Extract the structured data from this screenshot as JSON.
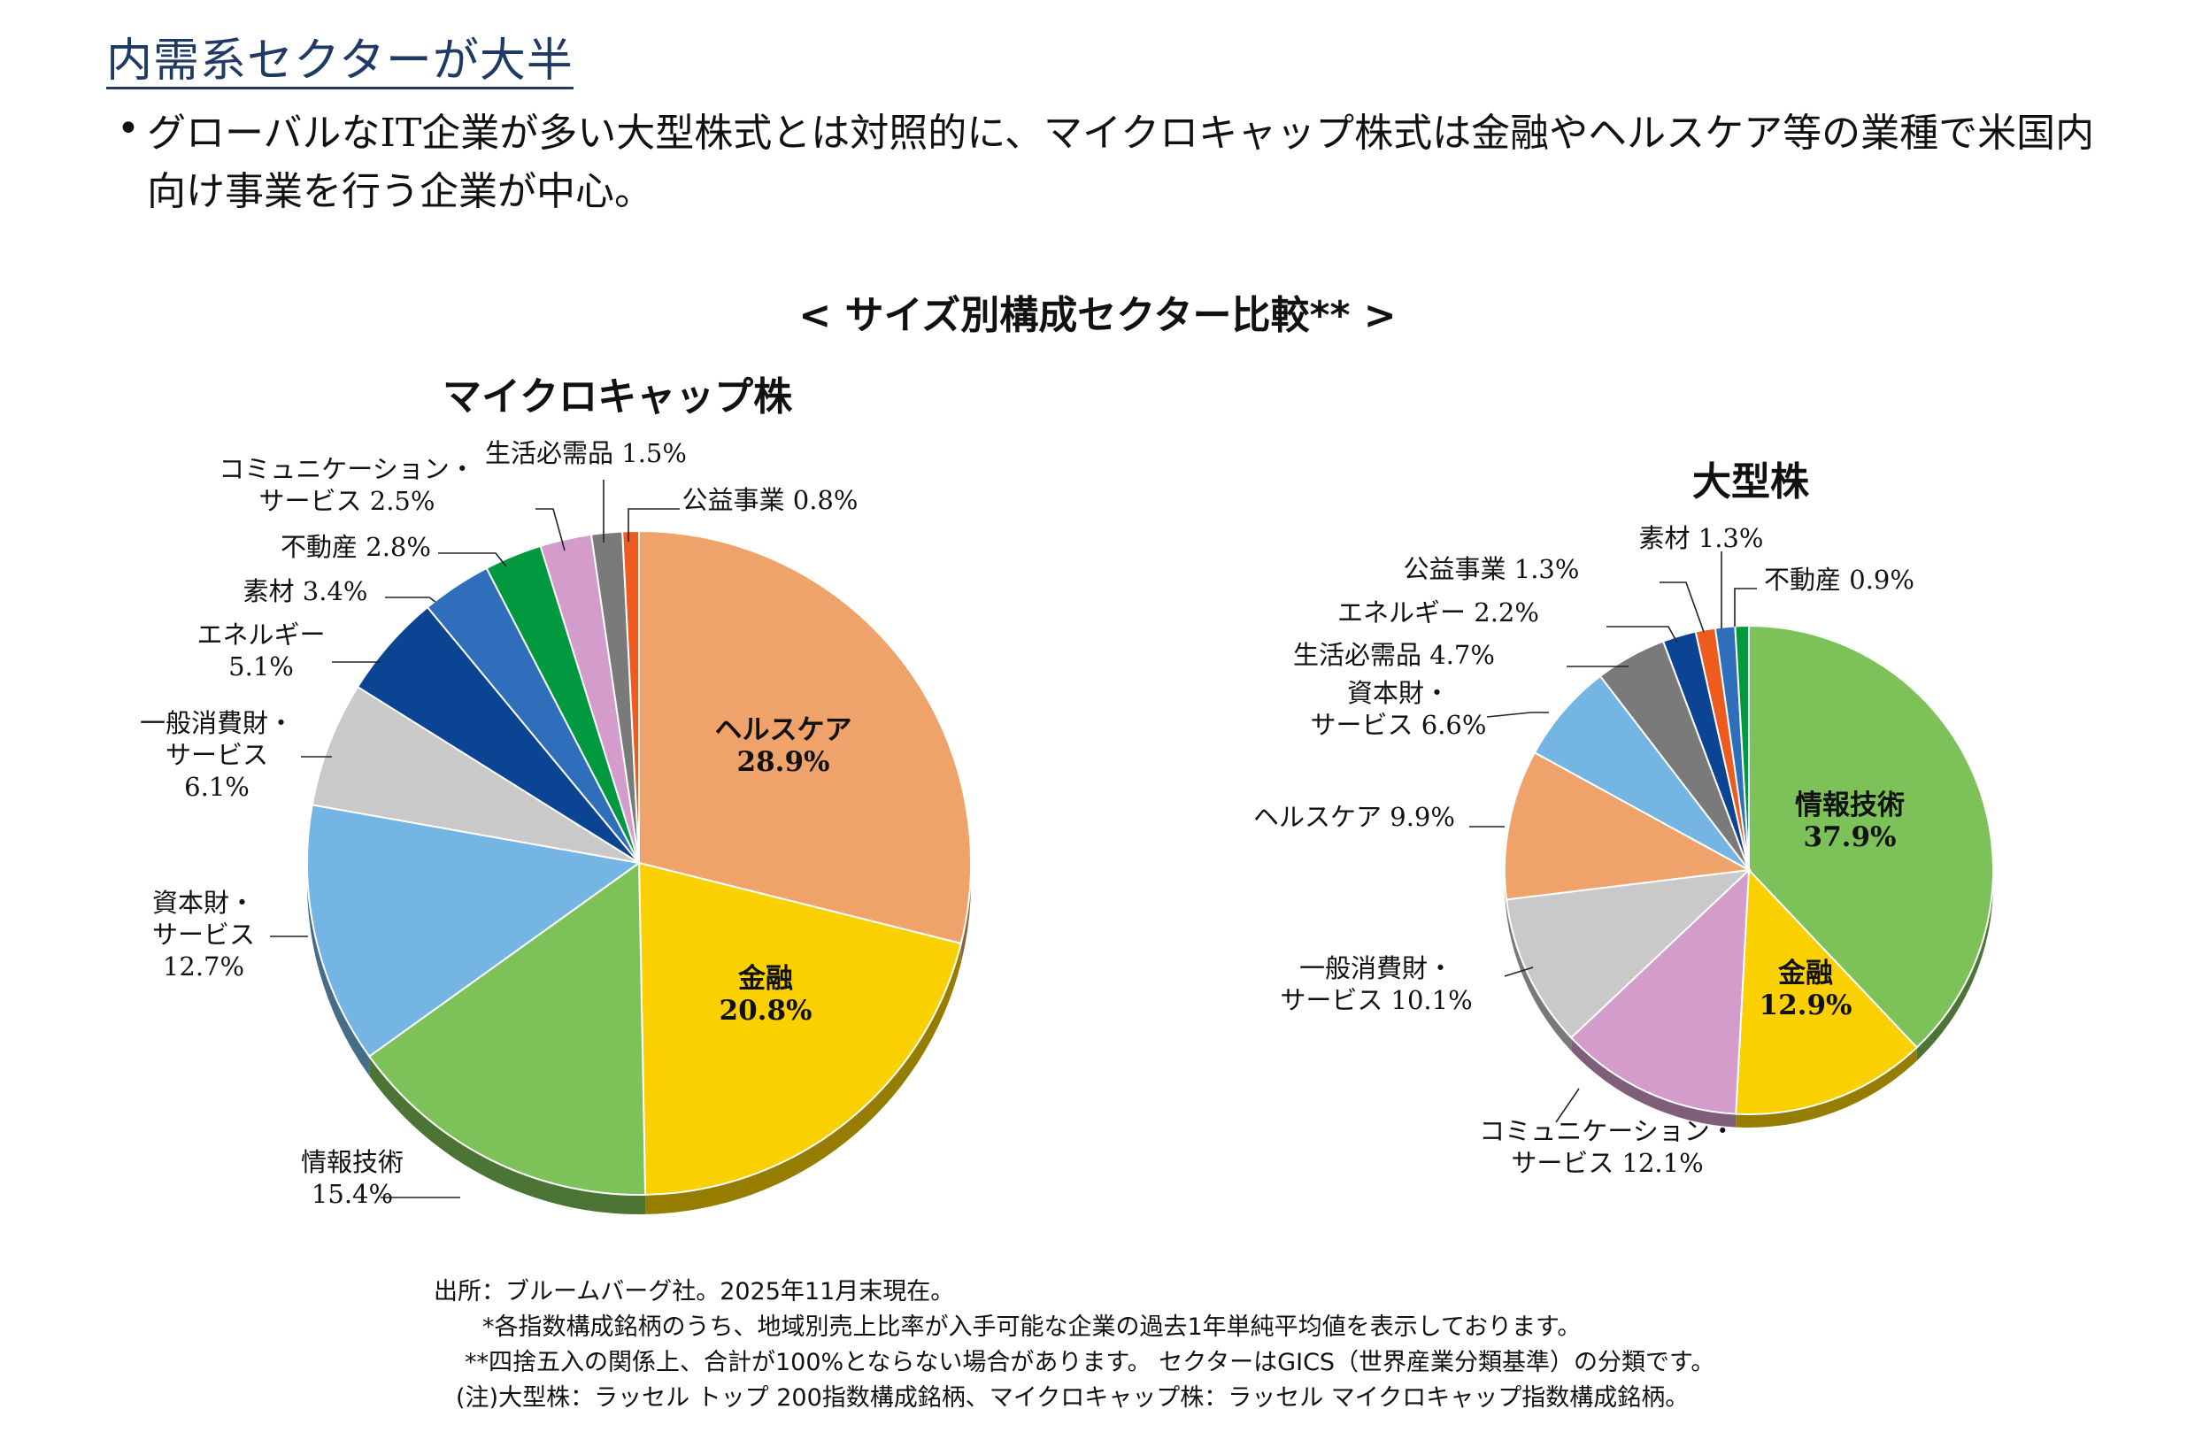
{
  "heading": "内需系セクターが大半",
  "bullet": {
    "marker": "•",
    "line1": "グローバルなIT企業が多い大型株式とは対照的に、マイクロキャップ株式は金融やヘルスケア等の業種で米国内",
    "line2": "向け事業を行う企業が中心。"
  },
  "chart_title": "< サイズ別構成セクター比較** >",
  "notes": [
    "出所：ブルームバーグ社。2025年11月末現在。",
    "*各指数構成銘柄のうち、地域別売上比率が入手可能な企業の過去1年単純平均値を表示しております。",
    "**四捨五入の関係上、合計が100%とならない場合があります。 セクターはGICS（世界産業分類基準）の分類です。",
    "(注)大型株：ラッセル トップ 200指数構成銘柄、マイクロキャップ株：ラッセル マイクロキャップ指数構成銘柄。"
  ],
  "chart_data": [
    {
      "type": "pie",
      "title": "マイクロキャップ株",
      "unit": "%",
      "slices": [
        {
          "label": "ヘルスケア",
          "value": 28.9,
          "display": "28.9%",
          "color": "#EFA26A"
        },
        {
          "label": "金融",
          "value": 20.8,
          "display": "20.8%",
          "color": "#FAD000"
        },
        {
          "label": "情報技術",
          "value": 15.4,
          "display": "15.4%",
          "color": "#7DC159"
        },
        {
          "label": "資本財・サービス",
          "value": 12.7,
          "display": "12.7%",
          "color": "#74B5E3"
        },
        {
          "label": "一般消費財・サービス",
          "value": 6.1,
          "display": "6.1%",
          "color": "#C9C9C9"
        },
        {
          "label": "エネルギー",
          "value": 5.1,
          "display": "5.1%",
          "color": "#0C4494"
        },
        {
          "label": "素材",
          "value": 3.4,
          "display": "3.4%",
          "color": "#2F6EBA"
        },
        {
          "label": "不動産",
          "value": 2.8,
          "display": "2.8%",
          "color": "#00993F"
        },
        {
          "label": "コミュニケーション・サービス",
          "value": 2.5,
          "display": "2.5%",
          "color": "#D39CCA"
        },
        {
          "label": "生活必需品",
          "value": 1.5,
          "display": "1.5%",
          "color": "#7A7A7A"
        },
        {
          "label": "公益事業",
          "value": 0.8,
          "display": "0.8%",
          "color": "#EF5B1E"
        }
      ],
      "callouts": [
        {
          "lines": [
            "ヘルスケア",
            "28.9%"
          ],
          "inside": true
        },
        {
          "lines": [
            "金融",
            "20.8%"
          ],
          "inside": true
        },
        {
          "lines": [
            "情報技術",
            "15.4%"
          ]
        },
        {
          "lines": [
            "資本財・",
            "サービス",
            "12.7%"
          ]
        },
        {
          "lines": [
            "一般消費財・",
            "サービス",
            "6.1%"
          ]
        },
        {
          "lines": [
            "エネルギー",
            "5.1%"
          ]
        },
        {
          "lines": [
            "素材  3.4%"
          ]
        },
        {
          "lines": [
            "不動産  2.8%"
          ]
        },
        {
          "lines": [
            "コミュニケーション・",
            "サービス  2.5%"
          ]
        },
        {
          "lines": [
            "生活必需品  1.5%"
          ]
        },
        {
          "lines": [
            "公益事業  0.8%"
          ]
        }
      ]
    },
    {
      "type": "pie",
      "title": "大型株",
      "unit": "%",
      "slices": [
        {
          "label": "情報技術",
          "value": 37.9,
          "display": "37.9%",
          "color": "#7DC159"
        },
        {
          "label": "金融",
          "value": 12.9,
          "display": "12.9%",
          "color": "#FAD000"
        },
        {
          "label": "コミュニケーション・サービス",
          "value": 12.1,
          "display": "12.1%",
          "color": "#D39CCA"
        },
        {
          "label": "一般消費財・サービス",
          "value": 10.1,
          "display": "10.1%",
          "color": "#C9C9C9"
        },
        {
          "label": "ヘルスケア",
          "value": 9.9,
          "display": "9.9%",
          "color": "#EFA26A"
        },
        {
          "label": "資本財・サービス",
          "value": 6.6,
          "display": "6.6%",
          "color": "#74B5E3"
        },
        {
          "label": "生活必需品",
          "value": 4.7,
          "display": "4.7%",
          "color": "#7A7A7A"
        },
        {
          "label": "エネルギー",
          "value": 2.2,
          "display": "2.2%",
          "color": "#0C4494"
        },
        {
          "label": "公益事業",
          "value": 1.3,
          "display": "1.3%",
          "color": "#EF5B1E"
        },
        {
          "label": "素材",
          "value": 1.3,
          "display": "1.3%",
          "color": "#2F6EBA"
        },
        {
          "label": "不動産",
          "value": 0.9,
          "display": "0.9%",
          "color": "#00993F"
        }
      ],
      "callouts": [
        {
          "lines": [
            "情報技術",
            "37.9%"
          ],
          "inside": true
        },
        {
          "lines": [
            "金融",
            "12.9%"
          ],
          "inside": true
        },
        {
          "lines": [
            "コミュニケーション・",
            "サービス  12.1%"
          ]
        },
        {
          "lines": [
            "一般消費財・",
            "サービス  10.1%"
          ]
        },
        {
          "lines": [
            "ヘルスケア  9.9%"
          ]
        },
        {
          "lines": [
            "資本財・",
            "サービス  6.6%"
          ]
        },
        {
          "lines": [
            "生活必需品  4.7%"
          ]
        },
        {
          "lines": [
            "エネルギー  2.2%"
          ]
        },
        {
          "lines": [
            "公益事業  1.3%"
          ]
        },
        {
          "lines": [
            "素材  1.3%"
          ]
        },
        {
          "lines": [
            "不動産  0.9%"
          ]
        }
      ]
    }
  ]
}
